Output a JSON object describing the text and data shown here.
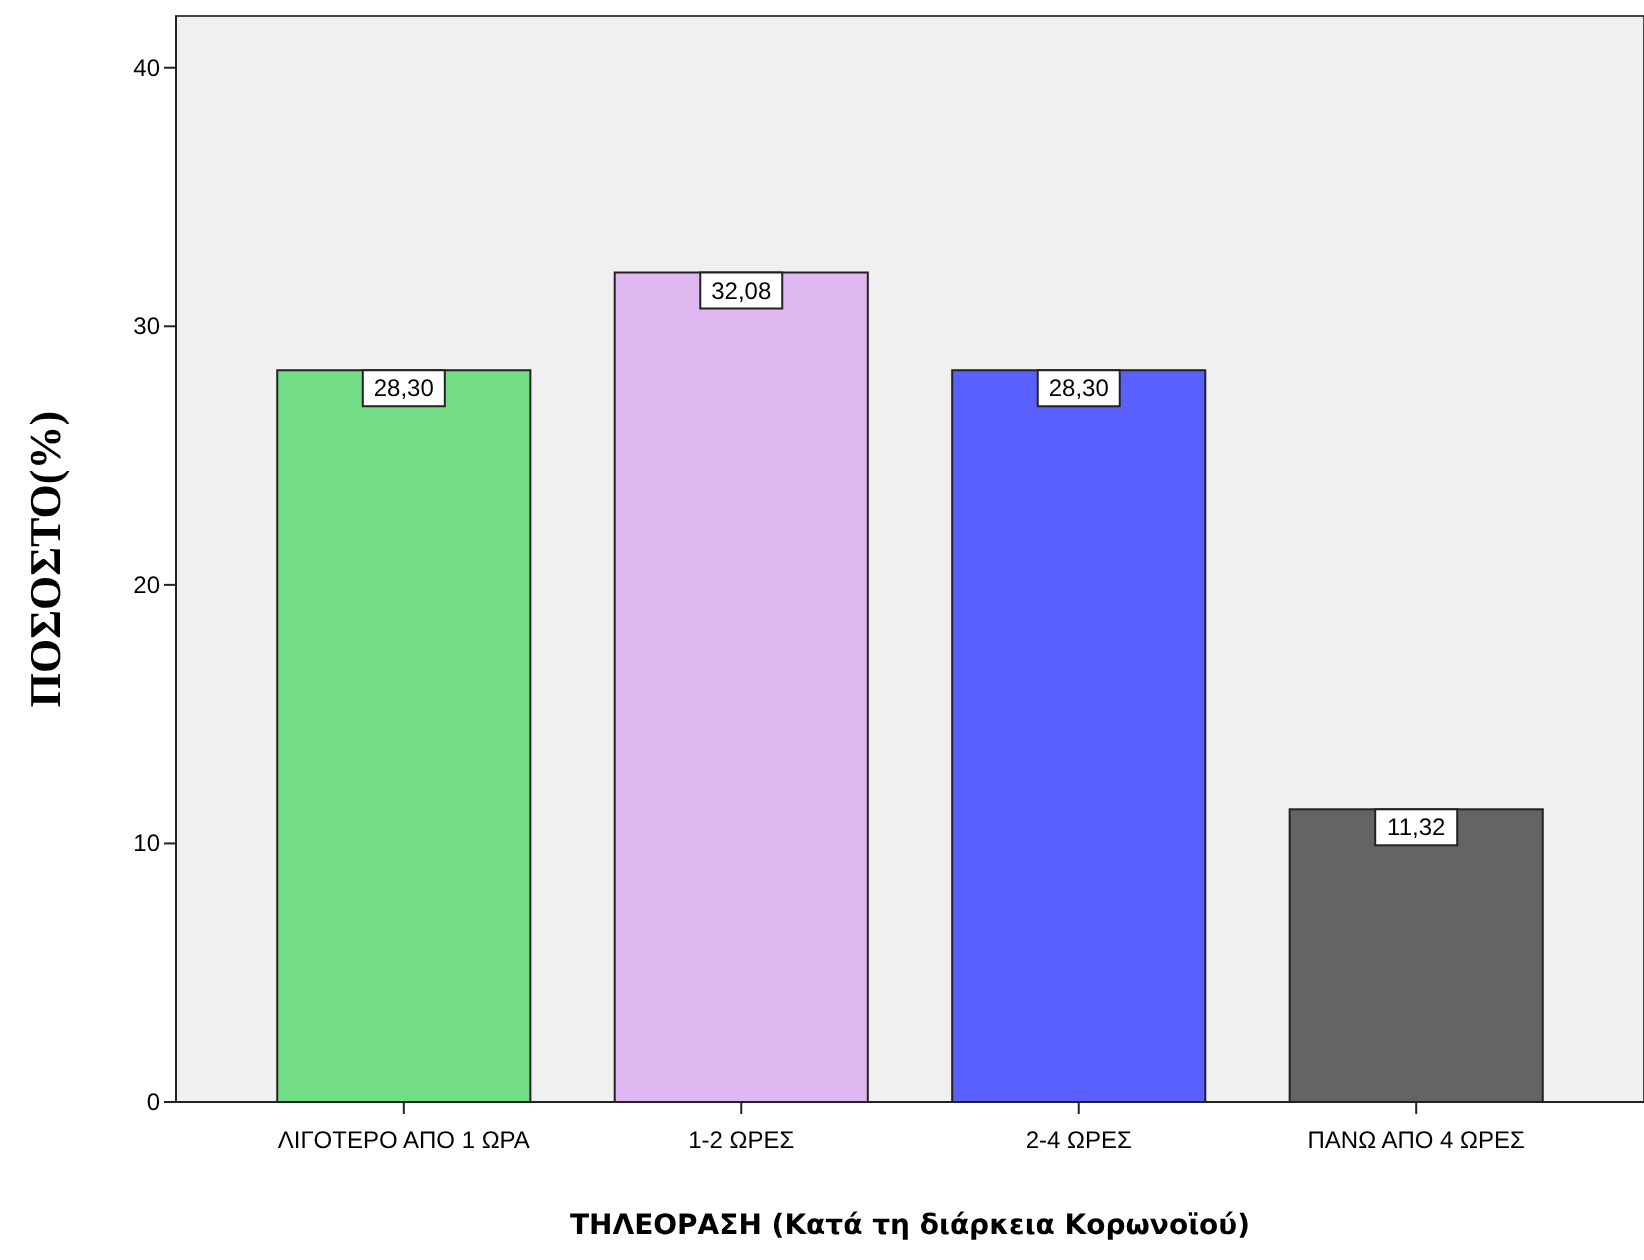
{
  "chart_data": {
    "type": "bar",
    "xlabel": "ΤΗΛΕΟΡΑΣΗ (Κατά τη διάρκεια Κορωνοϊού)",
    "ylabel": "ΠΟΣΟΣΤΟ(%)",
    "categories": [
      "ΛΙΓΟΤΕΡΟ ΑΠΟ 1 ΩΡΑ",
      "1-2 ΩΡΕΣ",
      "2-4 ΩΡΕΣ",
      "ΠΑΝΩ ΑΠΟ 4 ΩΡΕΣ"
    ],
    "values": [
      28.3,
      32.08,
      28.3,
      11.32
    ],
    "colors": [
      "#72dd85",
      "#dfb8f2",
      "#5a5fff",
      "#646464"
    ],
    "value_labels": [
      "28,30",
      "32,08",
      "28,30",
      "11,32"
    ],
    "ylim": [
      0,
      42
    ],
    "yticks": [
      0,
      10,
      20,
      30,
      40
    ],
    "grid": false
  }
}
